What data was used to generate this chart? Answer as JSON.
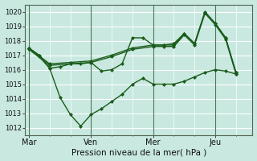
{
  "background_color": "#c8e8e0",
  "grid_color": "#ffffff",
  "line_color": "#1a5c1a",
  "vline_color": "#4a7a5a",
  "xlabel": "Pression niveau de la mer( hPa )",
  "ylim": [
    1011.5,
    1020.5
  ],
  "yticks": [
    1012,
    1013,
    1014,
    1015,
    1016,
    1017,
    1018,
    1019,
    1020
  ],
  "xtick_labels": [
    "Mar",
    "Ven",
    "Mer",
    "Jeu"
  ],
  "xtick_positions": [
    0,
    3,
    6,
    9
  ],
  "xlim": [
    -0.2,
    10.8
  ],
  "vlines": [
    0,
    3,
    6,
    9
  ],
  "series": [
    {
      "x": [
        0,
        1,
        2,
        3,
        4,
        5,
        6,
        6.5,
        7,
        7.5,
        8,
        8.5,
        9,
        9.5,
        10
      ],
      "y": [
        1017.5,
        1016.4,
        1016.5,
        1016.6,
        1017.0,
        1017.5,
        1017.7,
        1017.7,
        1017.7,
        1018.5,
        1017.8,
        1020.0,
        1019.2,
        1018.2,
        1015.8
      ],
      "marker": "D",
      "markersize": 2.0,
      "linewidth": 1.0
    },
    {
      "x": [
        0,
        1,
        2,
        3,
        4,
        5,
        6,
        6.5,
        7,
        7.5,
        8,
        8.5,
        9,
        9.5,
        10
      ],
      "y": [
        1017.4,
        1016.3,
        1016.4,
        1016.5,
        1016.9,
        1017.4,
        1017.6,
        1017.6,
        1017.6,
        1018.4,
        1017.7,
        1019.9,
        1019.1,
        1018.1,
        1015.7
      ],
      "marker": "D",
      "markersize": 2.0,
      "linewidth": 1.0
    },
    {
      "x": [
        0,
        0.5,
        1,
        1.5,
        2,
        2.5,
        3,
        3.5,
        4,
        4.5,
        5,
        5.5,
        6,
        6.5,
        7,
        7.5,
        8,
        8.5,
        9,
        9.5,
        10
      ],
      "y": [
        1017.5,
        1016.9,
        1016.1,
        1016.2,
        1016.4,
        1016.4,
        1016.5,
        1015.9,
        1016.0,
        1016.4,
        1018.2,
        1018.2,
        1017.7,
        1017.7,
        1017.8,
        1018.5,
        1017.8,
        1019.9,
        1019.2,
        1018.2,
        1015.8
      ],
      "marker": "D",
      "markersize": 2.0,
      "linewidth": 1.0
    },
    {
      "x": [
        0,
        0.5,
        1.0,
        1.5,
        2.0,
        2.5,
        3.0,
        3.5,
        4.0,
        4.5,
        5.0,
        5.5,
        6.0,
        6.5,
        7.0,
        7.5,
        8.0,
        8.5,
        9.0,
        9.5,
        10.0
      ],
      "y": [
        1017.5,
        1017.0,
        1016.1,
        1014.1,
        1012.9,
        1012.1,
        1012.9,
        1013.3,
        1013.8,
        1014.3,
        1015.0,
        1015.4,
        1015.0,
        1015.0,
        1015.0,
        1015.2,
        1015.5,
        1015.8,
        1016.0,
        1015.9,
        1015.7
      ],
      "marker": "D",
      "markersize": 2.0,
      "linewidth": 1.0
    }
  ]
}
